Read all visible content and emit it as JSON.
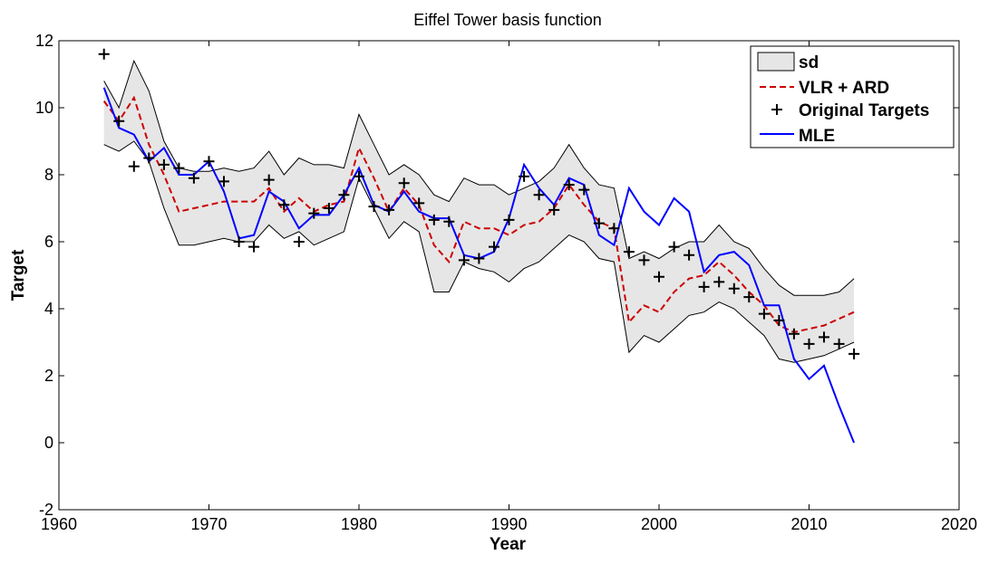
{
  "chart_data": {
    "type": "line",
    "title": "Eiffel Tower basis function",
    "xlabel": "Year",
    "ylabel": "Target",
    "xlim": [
      1960,
      2020
    ],
    "ylim": [
      -2,
      12
    ],
    "xticks": [
      1960,
      1970,
      1980,
      1990,
      2000,
      2010,
      2020
    ],
    "yticks": [
      -2,
      0,
      2,
      4,
      6,
      8,
      10,
      12
    ],
    "grid": false,
    "legend_position": "top-right",
    "legend": [
      "sd",
      "VLR + ARD",
      "Original Targets",
      "MLE"
    ],
    "colors": {
      "sd_fill": "#e6e6e6",
      "sd_edge": "#000000",
      "vlr": "#cc0000",
      "targets": "#000000",
      "mle": "#0000ff"
    },
    "x": [
      1963,
      1964,
      1965,
      1966,
      1967,
      1968,
      1969,
      1970,
      1971,
      1972,
      1973,
      1974,
      1975,
      1976,
      1977,
      1978,
      1979,
      1980,
      1981,
      1982,
      1983,
      1984,
      1985,
      1986,
      1987,
      1988,
      1989,
      1990,
      1991,
      1992,
      1993,
      1994,
      1995,
      1996,
      1997,
      1998,
      1999,
      2000,
      2001,
      2002,
      2003,
      2004,
      2005,
      2006,
      2007,
      2008,
      2009,
      2010,
      2011,
      2012,
      2013
    ],
    "series": [
      {
        "name": "sd",
        "upper": [
          10.8,
          10.0,
          11.4,
          10.5,
          9.0,
          8.2,
          8.1,
          8.1,
          8.2,
          8.1,
          8.2,
          8.7,
          8.0,
          8.5,
          8.3,
          8.3,
          8.2,
          9.8,
          8.9,
          8.0,
          8.3,
          8.0,
          7.4,
          7.2,
          7.9,
          7.7,
          7.7,
          7.4,
          7.6,
          7.8,
          8.2,
          8.9,
          8.2,
          7.7,
          7.6,
          5.5,
          5.7,
          5.5,
          5.8,
          6.0,
          6.0,
          6.5,
          6.0,
          5.8,
          5.2,
          4.7,
          4.4,
          4.4,
          4.4,
          4.5,
          4.9
        ],
        "lower": [
          8.9,
          8.7,
          9.0,
          8.4,
          7.0,
          5.9,
          5.9,
          6.0,
          6.1,
          6.0,
          6.0,
          6.5,
          6.1,
          6.3,
          5.9,
          6.1,
          6.3,
          7.9,
          7.0,
          6.1,
          6.6,
          6.3,
          4.5,
          4.5,
          5.4,
          5.2,
          5.1,
          4.8,
          5.2,
          5.4,
          5.8,
          6.2,
          6.0,
          5.5,
          5.4,
          2.7,
          3.2,
          3.0,
          3.4,
          3.8,
          3.9,
          4.2,
          4.0,
          3.6,
          3.2,
          2.5,
          2.4,
          2.5,
          2.6,
          2.8,
          3.0
        ]
      },
      {
        "name": "VLR + ARD",
        "values": [
          10.2,
          9.6,
          10.3,
          8.9,
          8.0,
          6.9,
          7.0,
          7.1,
          7.2,
          7.2,
          7.2,
          7.6,
          6.9,
          7.3,
          6.9,
          7.1,
          7.2,
          8.8,
          7.9,
          6.9,
          7.6,
          7.1,
          5.9,
          5.4,
          6.6,
          6.4,
          6.4,
          6.2,
          6.5,
          6.6,
          7.0,
          7.7,
          7.1,
          6.6,
          6.4,
          3.6,
          4.1,
          3.9,
          4.5,
          4.9,
          5.0,
          5.4,
          5.0,
          4.5,
          4.1,
          3.5,
          3.3,
          3.4,
          3.5,
          3.7,
          3.9
        ]
      },
      {
        "name": "Original Targets",
        "values": [
          11.6,
          9.6,
          8.25,
          8.5,
          8.3,
          8.2,
          7.9,
          8.4,
          7.8,
          6.0,
          5.85,
          7.85,
          7.1,
          6.0,
          6.85,
          7.0,
          7.4,
          7.95,
          7.05,
          6.95,
          7.75,
          7.15,
          6.65,
          6.6,
          5.45,
          5.5,
          5.85,
          6.65,
          7.95,
          7.4,
          6.95,
          7.7,
          7.55,
          6.55,
          6.4,
          5.7,
          5.45,
          4.95,
          5.85,
          5.6,
          4.65,
          4.8,
          4.6,
          4.35,
          3.85,
          3.65,
          3.25,
          2.95,
          3.15,
          2.95,
          2.65
        ]
      },
      {
        "name": "MLE",
        "values": [
          10.6,
          9.4,
          9.2,
          8.4,
          8.8,
          8.0,
          8.0,
          8.4,
          7.5,
          6.1,
          6.2,
          7.5,
          7.2,
          6.4,
          6.8,
          6.8,
          7.4,
          8.2,
          7.1,
          6.9,
          7.5,
          6.9,
          6.7,
          6.7,
          5.6,
          5.5,
          5.7,
          6.7,
          8.3,
          7.6,
          7.1,
          7.9,
          7.7,
          6.2,
          5.9,
          7.6,
          6.9,
          6.5,
          7.3,
          6.9,
          5.1,
          5.6,
          5.7,
          5.3,
          4.1,
          4.1,
          2.5,
          1.9,
          2.3,
          1.1,
          0.0
        ]
      }
    ]
  }
}
